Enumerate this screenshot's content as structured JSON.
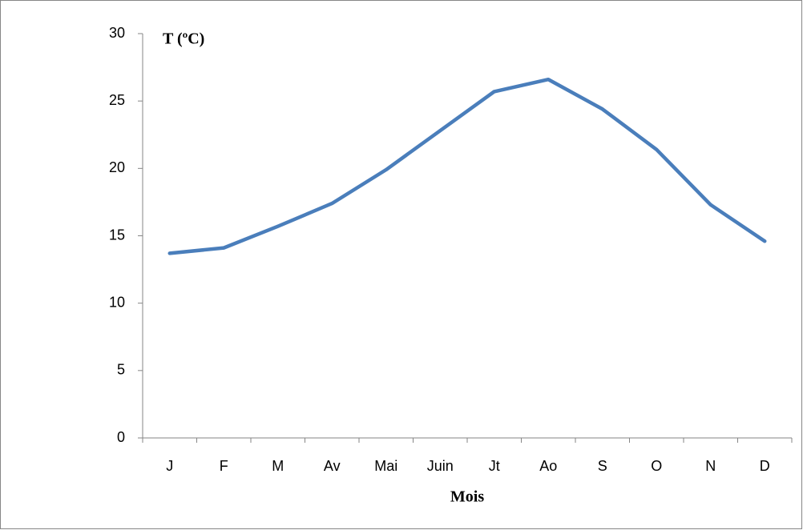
{
  "chart_data": {
    "type": "line",
    "y_label": "T (ºC)",
    "x_label": "Mois",
    "categories": [
      "J",
      "F",
      "M",
      "Av",
      "Mai",
      "Juin",
      "Jt",
      "Ao",
      "S",
      "O",
      "N",
      "D"
    ],
    "series": [
      {
        "name": "T",
        "color": "#4a7ebb",
        "values": [
          13.7,
          14.1,
          15.7,
          17.4,
          19.9,
          22.8,
          25.7,
          26.6,
          24.4,
          21.4,
          17.3,
          14.6
        ]
      }
    ],
    "ylim": [
      0,
      30
    ],
    "yticks": [
      0,
      5,
      10,
      15,
      20,
      25,
      30
    ],
    "grid": false
  }
}
